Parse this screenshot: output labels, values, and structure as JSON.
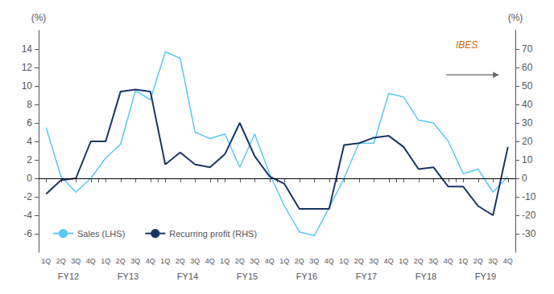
{
  "chart_data": {
    "type": "line",
    "categories": [
      "1Q",
      "2Q",
      "3Q",
      "4Q",
      "1Q",
      "2Q",
      "3Q",
      "4Q",
      "1Q",
      "2Q",
      "3Q",
      "4Q",
      "1Q",
      "2Q",
      "3Q",
      "4Q",
      "1Q",
      "2Q",
      "3Q",
      "4Q",
      "1Q",
      "2Q",
      "3Q",
      "4Q",
      "1Q",
      "2Q",
      "3Q",
      "4Q",
      "1Q",
      "2Q",
      "3Q",
      "4Q"
    ],
    "category_groups": [
      "FY12",
      "FY13",
      "FY14",
      "FY15",
      "FY16",
      "FY17",
      "FY18",
      "FY19"
    ],
    "series": [
      {
        "name": "Sales (LHS)",
        "color": "#5bc8f5",
        "values": [
          5.5,
          0.2,
          -1.5,
          0.0,
          2.2,
          3.7,
          9.5,
          8.5,
          13.7,
          13.0,
          5.0,
          4.3,
          4.8,
          1.2,
          4.8,
          0.5,
          -3.0,
          -5.8,
          -6.2,
          -3.2,
          0.0,
          3.8,
          3.8,
          9.2,
          8.8,
          6.3,
          6.0,
          4.0,
          0.5,
          1.0,
          -1.5,
          0.2
        ]
      },
      {
        "name": "Recurring profit (RHS)",
        "color": "#1a3564",
        "axis": "y2",
        "values": [
          -8.5,
          -1.0,
          0.0,
          20.0,
          20.0,
          47.0,
          48.0,
          47.0,
          7.5,
          14.0,
          7.5,
          6.0,
          13.0,
          30.0,
          12.0,
          1.0,
          -3.0,
          -16.5,
          -16.5,
          -16.5,
          18.0,
          19.0,
          22.0,
          23.0,
          17.0,
          5.0,
          6.0,
          -4.5,
          -4.5,
          -15.0,
          -20.0,
          17.0
        ]
      }
    ],
    "ylabel": "(%)",
    "y2label": "(%)",
    "ylim": [
      -8,
      16
    ],
    "yticks": [
      -6,
      -4,
      -2,
      0,
      2,
      4,
      6,
      8,
      10,
      12,
      14
    ],
    "y2lim": [
      -40,
      80
    ],
    "y2ticks": [
      -30,
      -20,
      -10,
      0,
      10,
      20,
      30,
      40,
      50,
      60,
      70
    ],
    "hlines": [
      0
    ],
    "annotations": [
      "IBES"
    ],
    "legend": "lower left",
    "grid": false
  }
}
